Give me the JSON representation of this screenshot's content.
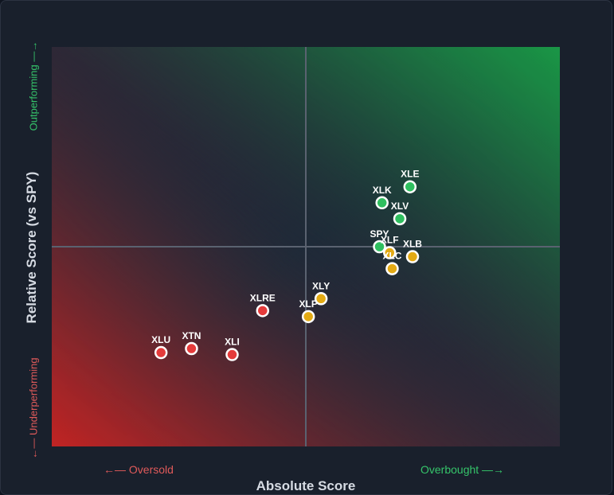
{
  "chart_data": {
    "type": "scatter",
    "title": "",
    "xlabel": "Absolute Score",
    "ylabel": "Relative Score (vs SPY)",
    "x_low_label": "←— Oversold",
    "x_high_label": "Overbought —→",
    "y_high_label": "Outperforming —→",
    "y_low_label": "←— Underperforming",
    "xlim": [
      -1,
      1
    ],
    "ylim": [
      -1,
      1
    ],
    "grid": false,
    "colors": {
      "bullish": "#2fbf5f",
      "neutral": "#e3aa14",
      "bearish": "#e53b3b",
      "marker_stroke": "#ffffff",
      "midline": "#5a6270"
    },
    "points": [
      {
        "label": "XLE",
        "x": 0.41,
        "y": 0.3,
        "category": "bullish"
      },
      {
        "label": "XLK",
        "x": 0.3,
        "y": 0.22,
        "category": "bullish"
      },
      {
        "label": "XLV",
        "x": 0.37,
        "y": 0.14,
        "category": "bullish"
      },
      {
        "label": "SPY",
        "x": 0.29,
        "y": 0.0,
        "category": "bullish"
      },
      {
        "label": "XLF",
        "x": 0.33,
        "y": -0.03,
        "category": "neutral"
      },
      {
        "label": "XLB",
        "x": 0.42,
        "y": -0.05,
        "category": "neutral"
      },
      {
        "label": "XLC",
        "x": 0.34,
        "y": -0.11,
        "category": "neutral"
      },
      {
        "label": "XLY",
        "x": 0.06,
        "y": -0.26,
        "category": "neutral"
      },
      {
        "label": "XLP",
        "x": 0.01,
        "y": -0.35,
        "category": "neutral"
      },
      {
        "label": "XLRE",
        "x": -0.17,
        "y": -0.32,
        "category": "bearish"
      },
      {
        "label": "XLU",
        "x": -0.57,
        "y": -0.53,
        "category": "bearish"
      },
      {
        "label": "XTN",
        "x": -0.45,
        "y": -0.51,
        "category": "bearish"
      },
      {
        "label": "XLI",
        "x": -0.29,
        "y": -0.54,
        "category": "bearish"
      }
    ]
  }
}
